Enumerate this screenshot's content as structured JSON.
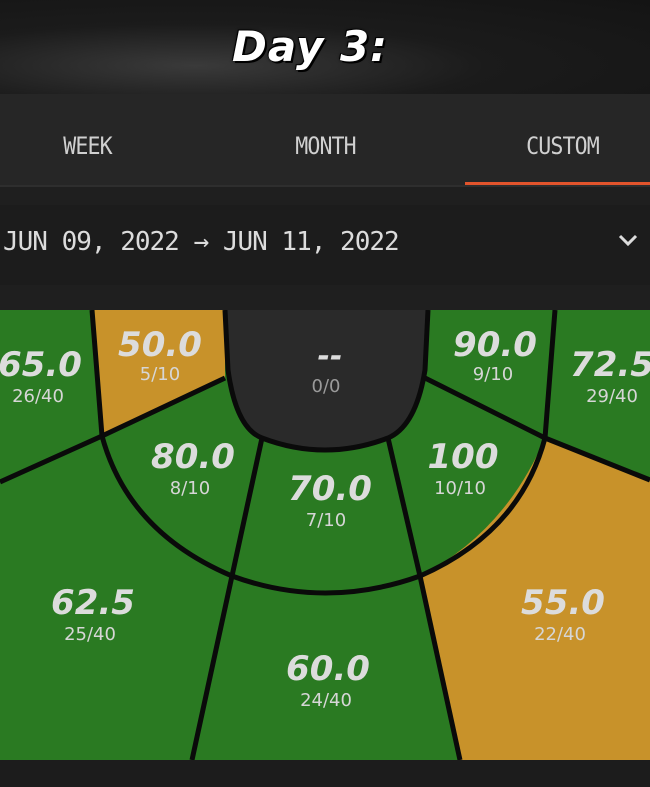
{
  "banner": {
    "title": "Day 3:"
  },
  "tabs": [
    {
      "label": "WEEK",
      "active": false
    },
    {
      "label": "MONTH",
      "active": false
    },
    {
      "label": "CUSTOM",
      "active": true
    }
  ],
  "date_range": {
    "start": "JUN 09, 2022",
    "arrow": "→",
    "end": "JUN 11, 2022"
  },
  "colors": {
    "green": "#2a7a22",
    "orange": "#c8922a",
    "dark": "#2a2a2a",
    "accent": "#e2542c"
  },
  "zones": {
    "left_corner": {
      "pct": "65.0",
      "made": "26/40"
    },
    "left_baseline": {
      "pct": "50.0",
      "made": "5/10"
    },
    "paint": {
      "pct": "--",
      "made": "0/0"
    },
    "right_baseline": {
      "pct": "90.0",
      "made": "9/10"
    },
    "right_corner": {
      "pct": "72.5",
      "made": "29/40"
    },
    "left_elbow": {
      "pct": "80.0",
      "made": "8/10"
    },
    "top_key": {
      "pct": "70.0",
      "made": "7/10"
    },
    "right_elbow": {
      "pct": "100",
      "made": "10/10"
    },
    "left_wing": {
      "pct": "62.5",
      "made": "25/40"
    },
    "top_three": {
      "pct": "60.0",
      "made": "24/40"
    },
    "right_wing": {
      "pct": "55.0",
      "made": "22/40"
    }
  }
}
